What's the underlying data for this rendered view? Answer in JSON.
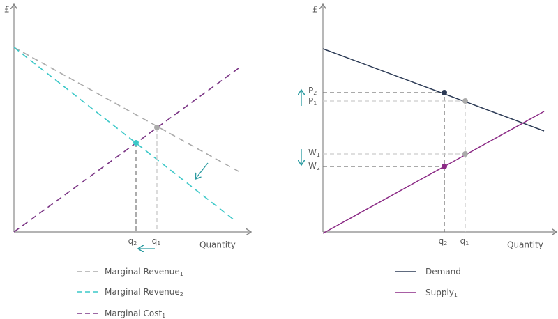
{
  "left": {
    "y_label": "£",
    "x_label": "Quantity",
    "q2": {
      "text": "q",
      "sub": "2"
    },
    "q1": {
      "text": "q",
      "sub": "1"
    },
    "legend": [
      {
        "text": "Marginal Revenue",
        "sub": "1"
      },
      {
        "text": "Marginal Revenue",
        "sub": "2"
      },
      {
        "text": "Marginal Cost",
        "sub": "1"
      }
    ]
  },
  "right": {
    "y_label": "£",
    "x_label": "Quantity",
    "p2": {
      "text": "P",
      "sub": "2"
    },
    "p1": {
      "text": "P",
      "sub": "1"
    },
    "w1": {
      "text": "W",
      "sub": "1"
    },
    "w2": {
      "text": "W",
      "sub": "2"
    },
    "q2": {
      "text": "q",
      "sub": "2"
    },
    "q1": {
      "text": "q",
      "sub": "1"
    },
    "legend": [
      {
        "text": "Demand"
      },
      {
        "text": "Supply",
        "sub": "1"
      }
    ]
  }
}
